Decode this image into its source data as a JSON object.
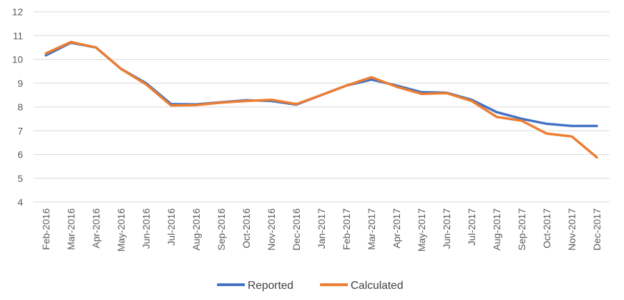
{
  "chart_data": {
    "type": "line",
    "categories": [
      "Feb-2016",
      "Mar-2016",
      "Apr-2016",
      "May-2016",
      "Jun-2016",
      "Jul-2016",
      "Aug-2016",
      "Sep-2016",
      "Oct-2016",
      "Nov-2016",
      "Dec-2016",
      "Jan-2017",
      "Feb-2017",
      "Mar-2017",
      "Apr-2017",
      "May-2017",
      "Jun-2017",
      "Jul-2017",
      "Aug-2017",
      "Sep-2017",
      "Oct-2017",
      "Nov-2017",
      "Dec-2017"
    ],
    "series": [
      {
        "name": "Reported",
        "color": "#4472C4",
        "values": [
          10.17,
          10.7,
          10.5,
          9.6,
          9.0,
          8.12,
          8.11,
          8.2,
          8.28,
          8.25,
          8.1,
          8.5,
          8.9,
          9.15,
          8.9,
          8.62,
          8.6,
          8.3,
          7.78,
          7.5,
          7.29,
          7.2,
          7.2
        ]
      },
      {
        "name": "Calculated",
        "color": "#ED7D31",
        "values": [
          10.25,
          10.73,
          10.5,
          9.6,
          8.95,
          8.06,
          8.08,
          8.18,
          8.25,
          8.3,
          8.12,
          8.5,
          8.9,
          9.25,
          8.85,
          8.55,
          8.58,
          8.25,
          7.58,
          7.42,
          6.88,
          6.76,
          5.88
        ]
      }
    ],
    "yticks": [
      "4",
      "5",
      "6",
      "7",
      "8",
      "9",
      "10",
      "11",
      "12"
    ],
    "ylim": [
      4,
      12
    ],
    "grid": true,
    "legend_position": "bottom"
  }
}
